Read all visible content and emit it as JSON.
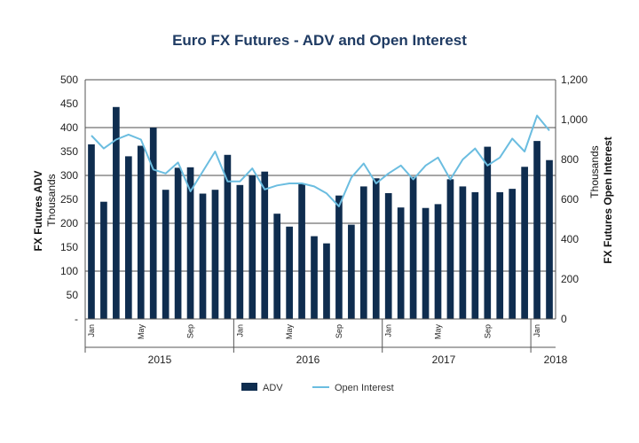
{
  "chart_data": {
    "type": "bar+line",
    "title": "Euro FX Futures - ADV and Open Interest",
    "left_axis": {
      "label": "FX Futures ADV",
      "sublabel": "Thousands",
      "ticks": [
        "500",
        "450",
        "400",
        "350",
        "300",
        "250",
        "200",
        "150",
        "100",
        "50",
        "-"
      ],
      "range": [
        0,
        500
      ]
    },
    "right_axis": {
      "label": "FX Futures Open Interest",
      "sublabel": "Thousands",
      "ticks": [
        "1,200",
        "1,000",
        "800",
        "600",
        "400",
        "200",
        "0"
      ],
      "range": [
        0,
        1200
      ]
    },
    "month_labels": [
      "Jan",
      "May",
      "Sep",
      "Jan",
      "May",
      "Sep",
      "Jan",
      "May",
      "Sep",
      "Jan"
    ],
    "month_label_index": [
      0,
      4,
      8,
      12,
      16,
      20,
      24,
      28,
      32,
      36
    ],
    "years": [
      "2015",
      "2016",
      "2017",
      "2018"
    ],
    "series": [
      {
        "name": "ADV",
        "type": "bar",
        "axis": "left",
        "color": "#0f2d4f",
        "values": [
          365,
          245,
          443,
          340,
          362,
          400,
          270,
          316,
          317,
          262,
          270,
          343,
          280,
          300,
          308,
          220,
          193,
          282,
          173,
          158,
          258,
          197,
          277,
          294,
          263,
          233,
          297,
          232,
          240,
          292,
          277,
          265,
          360,
          265,
          272,
          318,
          372,
          332
        ]
      },
      {
        "name": "Open Interest",
        "type": "line",
        "axis": "right",
        "color": "#6bbde0",
        "values": [
          920,
          855,
          900,
          925,
          900,
          750,
          730,
          785,
          640,
          740,
          840,
          690,
          690,
          755,
          650,
          670,
          680,
          680,
          665,
          630,
          565,
          710,
          780,
          680,
          730,
          770,
          700,
          770,
          810,
          700,
          800,
          855,
          770,
          810,
          905,
          840,
          1020,
          945
        ]
      }
    ],
    "legend": [
      "ADV",
      "Open Interest"
    ]
  }
}
